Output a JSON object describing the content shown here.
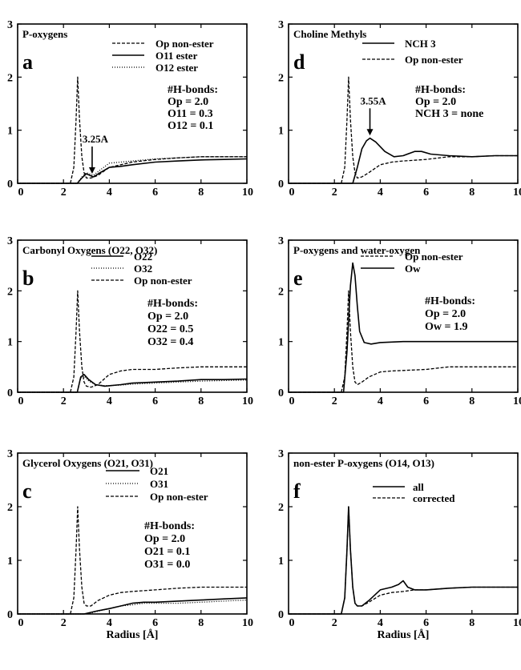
{
  "chart_data": [
    {
      "panel": "a",
      "type": "line",
      "title": "P-oxygens",
      "xlim": [
        0,
        10
      ],
      "ylim": [
        0,
        3
      ],
      "xticks": [
        "0",
        "2",
        "4",
        "6",
        "8",
        "10"
      ],
      "yticks": [
        "0",
        "1",
        "2",
        "3"
      ],
      "xlabel": "",
      "series": [
        {
          "name": "Op non-ester",
          "style": "dashed",
          "x": [
            0,
            2.3,
            2.45,
            2.55,
            2.62,
            2.7,
            2.8,
            2.9,
            3.0,
            3.2,
            3.5,
            4,
            5,
            6,
            7,
            8,
            9,
            10
          ],
          "y": [
            0,
            0,
            0.3,
            1.2,
            2.0,
            1.2,
            0.5,
            0.2,
            0.1,
            0.1,
            0.15,
            0.3,
            0.4,
            0.45,
            0.48,
            0.5,
            0.5,
            0.5
          ]
        },
        {
          "name": "O11 ester",
          "style": "solid",
          "x": [
            0,
            2.6,
            2.8,
            3.0,
            3.3,
            3.6,
            4,
            4.5,
            5,
            6,
            7,
            8,
            9,
            10
          ],
          "y": [
            0,
            0,
            0.1,
            0.18,
            0.12,
            0.2,
            0.3,
            0.32,
            0.35,
            0.4,
            0.42,
            0.44,
            0.45,
            0.46
          ]
        },
        {
          "name": "O12 ester",
          "style": "dotted",
          "x": [
            0,
            2.6,
            2.8,
            3.0,
            3.3,
            3.6,
            4,
            4.5,
            5,
            6,
            7,
            8,
            9,
            10
          ],
          "y": [
            0,
            0,
            0.12,
            0.2,
            0.15,
            0.25,
            0.38,
            0.4,
            0.42,
            0.46,
            0.48,
            0.5,
            0.5,
            0.5
          ]
        }
      ],
      "hbonds": {
        "header": "#H-bonds:",
        "lines": [
          "Op    = 2.0",
          "O11 = 0.3",
          "O12 = 0.1"
        ]
      },
      "annotation": {
        "text": "3.25A",
        "x": 3.25,
        "y": 0.15
      }
    },
    {
      "panel": "d",
      "type": "line",
      "title": "Choline  Methyls",
      "xlim": [
        0,
        10
      ],
      "ylim": [
        0,
        3
      ],
      "xticks": [
        "0",
        "2",
        "4",
        "6",
        "8",
        "10"
      ],
      "yticks": [
        "0",
        "1",
        "2",
        "3"
      ],
      "xlabel": "",
      "series": [
        {
          "name": "NCH 3",
          "style": "solid",
          "x": [
            0,
            2.8,
            3.0,
            3.2,
            3.4,
            3.55,
            3.8,
            4.2,
            4.6,
            5.0,
            5.5,
            5.8,
            6.2,
            7,
            8,
            9,
            10
          ],
          "y": [
            0,
            0,
            0.3,
            0.65,
            0.8,
            0.85,
            0.78,
            0.6,
            0.5,
            0.52,
            0.6,
            0.6,
            0.55,
            0.52,
            0.5,
            0.52,
            0.52
          ]
        },
        {
          "name": "Op non-ester",
          "style": "dashed",
          "x": [
            0,
            2.3,
            2.45,
            2.55,
            2.62,
            2.7,
            2.8,
            2.9,
            3.0,
            3.2,
            3.5,
            4,
            4.5,
            5,
            6,
            7,
            8,
            9,
            10
          ],
          "y": [
            0,
            0,
            0.3,
            1.2,
            2.0,
            1.2,
            0.5,
            0.2,
            0.1,
            0.12,
            0.2,
            0.35,
            0.4,
            0.42,
            0.45,
            0.5,
            0.5,
            0.52,
            0.52
          ]
        }
      ],
      "hbonds": {
        "header": "#H-bonds:",
        "lines": [
          "Op       = 2.0",
          "NCH 3 = none"
        ]
      },
      "annotation": {
        "text": "3.55A",
        "x": 3.55,
        "y": 0.87
      }
    },
    {
      "panel": "b",
      "type": "line",
      "title": "Carbonyl  Oxygens  (O22, O32)",
      "xlim": [
        0,
        10
      ],
      "ylim": [
        0,
        3
      ],
      "xticks": [
        "0",
        "2",
        "4",
        "6",
        "8",
        "10"
      ],
      "yticks": [
        "0",
        "1",
        "2",
        "3"
      ],
      "xlabel": "",
      "series": [
        {
          "name": "O22",
          "style": "solid",
          "x": [
            0,
            2.6,
            2.75,
            2.9,
            3.1,
            3.4,
            3.8,
            4.5,
            5,
            6,
            7,
            8,
            9,
            10
          ],
          "y": [
            0,
            0,
            0.3,
            0.35,
            0.25,
            0.15,
            0.12,
            0.15,
            0.18,
            0.2,
            0.22,
            0.25,
            0.25,
            0.26
          ]
        },
        {
          "name": "O32",
          "style": "dotted",
          "x": [
            0,
            2.6,
            2.75,
            2.9,
            3.1,
            3.4,
            3.8,
            4.5,
            5,
            6,
            7,
            8,
            9,
            10
          ],
          "y": [
            0,
            0,
            0.28,
            0.32,
            0.22,
            0.15,
            0.13,
            0.14,
            0.16,
            0.18,
            0.2,
            0.22,
            0.23,
            0.24
          ]
        },
        {
          "name": "Op non-ester",
          "style": "dashed",
          "x": [
            0,
            2.3,
            2.45,
            2.55,
            2.62,
            2.7,
            2.8,
            2.9,
            3.0,
            3.2,
            3.5,
            4,
            4.5,
            5,
            6,
            7,
            8,
            9,
            10
          ],
          "y": [
            0,
            0,
            0.3,
            1.2,
            2.0,
            1.2,
            0.5,
            0.2,
            0.12,
            0.1,
            0.15,
            0.35,
            0.42,
            0.45,
            0.45,
            0.48,
            0.5,
            0.5,
            0.5
          ]
        }
      ],
      "hbonds": {
        "header": "#H-bonds:",
        "lines": [
          "Op    = 2.0",
          "O22 = 0.5",
          "O32 = 0.4"
        ]
      }
    },
    {
      "panel": "e",
      "type": "line",
      "title": "P-oxygens  and  water-oxygen",
      "xlim": [
        0,
        10
      ],
      "ylim": [
        0,
        3
      ],
      "xticks": [
        "0",
        "2",
        "4",
        "6",
        "8",
        "10"
      ],
      "yticks": [
        "0",
        "1",
        "2",
        "3"
      ],
      "xlabel": "",
      "series": [
        {
          "name": "Op non-ester",
          "style": "dashed",
          "x": [
            0,
            2.3,
            2.45,
            2.55,
            2.62,
            2.7,
            2.8,
            2.9,
            3.0,
            3.2,
            3.5,
            4,
            4.5,
            5,
            6,
            7,
            8,
            9,
            10
          ],
          "y": [
            0,
            0,
            0.3,
            1.2,
            2.0,
            1.2,
            0.5,
            0.2,
            0.15,
            0.2,
            0.3,
            0.4,
            0.42,
            0.43,
            0.45,
            0.5,
            0.5,
            0.5,
            0.5
          ]
        },
        {
          "name": "Ow",
          "style": "solid",
          "x": [
            0,
            2.4,
            2.55,
            2.7,
            2.8,
            2.9,
            3.0,
            3.1,
            3.3,
            3.6,
            4,
            5,
            6,
            7,
            8,
            9,
            10
          ],
          "y": [
            0,
            0,
            0.8,
            2.1,
            2.55,
            2.3,
            1.7,
            1.2,
            0.98,
            0.95,
            0.98,
            1.0,
            1.0,
            1.0,
            1.0,
            1.0,
            1.0
          ]
        }
      ],
      "hbonds": {
        "header": "#H-bonds:",
        "lines": [
          "Op = 2.0",
          "Ow = 1.9"
        ]
      }
    },
    {
      "panel": "c",
      "type": "line",
      "title": "Glycerol  Oxygens  (O21, O31)",
      "xlim": [
        0,
        10
      ],
      "ylim": [
        0,
        3
      ],
      "xticks": [
        "0",
        "2",
        "4",
        "6",
        "8",
        "10"
      ],
      "yticks": [
        "0",
        "1",
        "2",
        "3"
      ],
      "xlabel": "Radius  [Å]",
      "series": [
        {
          "name": "O21",
          "style": "solid",
          "x": [
            0,
            2.9,
            3.2,
            3.5,
            4,
            4.5,
            5,
            5.5,
            6,
            7,
            8,
            9,
            10
          ],
          "y": [
            0,
            0,
            0.03,
            0.06,
            0.1,
            0.15,
            0.2,
            0.22,
            0.22,
            0.24,
            0.26,
            0.28,
            0.3
          ]
        },
        {
          "name": "O31",
          "style": "dotted",
          "x": [
            0,
            2.9,
            3.2,
            3.5,
            4,
            4.5,
            5,
            5.5,
            6,
            7,
            8,
            9,
            10
          ],
          "y": [
            0,
            0,
            0.02,
            0.05,
            0.1,
            0.15,
            0.17,
            0.2,
            0.2,
            0.2,
            0.22,
            0.24,
            0.26
          ]
        },
        {
          "name": "Op non-ester",
          "style": "dashed",
          "x": [
            0,
            2.3,
            2.45,
            2.55,
            2.62,
            2.7,
            2.8,
            2.9,
            3.0,
            3.2,
            3.5,
            4,
            4.5,
            5,
            6,
            7,
            8,
            9,
            10
          ],
          "y": [
            0,
            0,
            0.3,
            1.2,
            2.0,
            1.2,
            0.5,
            0.2,
            0.15,
            0.15,
            0.25,
            0.35,
            0.4,
            0.42,
            0.45,
            0.48,
            0.5,
            0.5,
            0.5
          ]
        }
      ],
      "hbonds": {
        "header": "#H-bonds:",
        "lines": [
          "Op    = 2.0",
          "O21 = 0.1",
          "O31 = 0.0"
        ]
      }
    },
    {
      "panel": "f",
      "type": "line",
      "title": "non-ester  P-oxygens  (O14, O13)",
      "xlim": [
        0,
        10
      ],
      "ylim": [
        0,
        3
      ],
      "xticks": [
        "0",
        "2",
        "4",
        "6",
        "8",
        "10"
      ],
      "yticks": [
        "0",
        "1",
        "2",
        "3"
      ],
      "xlabel": "Radius  [Å]",
      "series": [
        {
          "name": "all",
          "style": "solid",
          "x": [
            0,
            2.3,
            2.45,
            2.55,
            2.62,
            2.7,
            2.8,
            2.9,
            3.0,
            3.2,
            3.5,
            4,
            4.5,
            4.8,
            5.0,
            5.2,
            5.5,
            6,
            7,
            8,
            9,
            10
          ],
          "y": [
            0,
            0,
            0.3,
            1.2,
            2.0,
            1.2,
            0.5,
            0.2,
            0.15,
            0.15,
            0.25,
            0.45,
            0.5,
            0.55,
            0.62,
            0.5,
            0.45,
            0.45,
            0.48,
            0.5,
            0.5,
            0.5
          ]
        },
        {
          "name": "corrected",
          "style": "dashed",
          "x": [
            0,
            2.3,
            2.45,
            2.55,
            2.62,
            2.7,
            2.8,
            2.9,
            3.0,
            3.2,
            3.5,
            4,
            4.5,
            5,
            5.5,
            6,
            7,
            8,
            9,
            10
          ],
          "y": [
            0,
            0,
            0.3,
            1.2,
            2.0,
            1.2,
            0.5,
            0.2,
            0.15,
            0.15,
            0.22,
            0.35,
            0.4,
            0.42,
            0.45,
            0.45,
            0.48,
            0.5,
            0.5,
            0.5
          ]
        }
      ]
    }
  ]
}
